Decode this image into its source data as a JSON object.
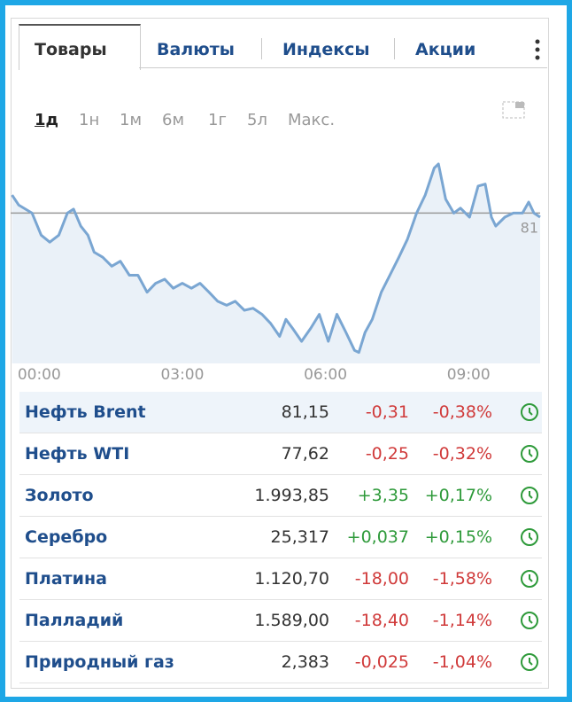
{
  "tabs": [
    "Товары",
    "Валюты",
    "Индексы",
    "Акции"
  ],
  "periods": [
    "1д",
    "1н",
    "1м",
    "6м",
    "1г",
    "5л",
    "Макс."
  ],
  "chart_data": {
    "type": "line",
    "color": "#7aa6d2",
    "fill": "#eaf1f8",
    "x": [
      -0.57,
      -0.43,
      -0.15,
      0.04,
      0.22,
      0.41,
      0.59,
      0.72,
      0.87,
      1.02,
      1.15,
      1.33,
      1.52,
      1.7,
      1.89,
      2.07,
      2.26,
      2.44,
      2.63,
      2.81,
      3.0,
      3.19,
      3.37,
      3.56,
      3.74,
      3.93,
      4.11,
      4.3,
      4.48,
      4.67,
      4.85,
      5.04,
      5.17,
      5.31,
      5.5,
      5.69,
      5.87,
      6.06,
      6.24,
      6.43,
      6.61,
      6.7,
      6.83,
      6.98,
      7.17,
      7.35,
      7.54,
      7.72,
      7.91,
      8.09,
      8.28,
      8.37,
      8.52,
      8.69,
      8.83,
      9.02,
      9.2,
      9.35,
      9.48,
      9.57,
      9.76,
      9.94,
      10.13,
      10.26,
      10.37,
      10.5
    ],
    "series": [
      {
        "values": [
          81.18,
          81.08,
          81.0,
          80.78,
          80.71,
          80.78,
          81.0,
          81.04,
          80.87,
          80.78,
          80.61,
          80.56,
          80.47,
          80.52,
          80.38,
          80.38,
          80.21,
          80.3,
          80.34,
          80.25,
          80.3,
          80.25,
          80.3,
          80.21,
          80.12,
          80.08,
          80.12,
          80.03,
          80.05,
          79.99,
          79.9,
          79.77,
          79.94,
          79.85,
          79.72,
          79.85,
          79.99,
          79.72,
          79.99,
          79.81,
          79.63,
          79.61,
          79.81,
          79.94,
          80.21,
          80.38,
          80.56,
          80.74,
          81.0,
          81.18,
          81.45,
          81.49,
          81.14,
          81.0,
          81.05,
          80.96,
          81.27,
          81.29,
          80.96,
          80.87,
          80.96,
          81.0,
          81.0,
          81.11,
          81.0,
          80.96
        ]
      }
    ],
    "xlim": [
      -0.6,
      10.5
    ],
    "ylim": [
      79.5,
      81.8
    ],
    "xticks": [
      {
        "value": 0,
        "label": "00:00"
      },
      {
        "value": 3,
        "label": "03:00"
      },
      {
        "value": 6,
        "label": "06:00"
      },
      {
        "value": 9,
        "label": "09:00"
      }
    ],
    "yticks": [
      81
    ]
  },
  "table": {
    "rows": [
      {
        "name": "Нефть Brent",
        "price": "81,15",
        "change": "-0,31",
        "percent": "-0,38%",
        "color": "#d03a3a"
      },
      {
        "name": "Нефть WTI",
        "price": "77,62",
        "change": "-0,25",
        "percent": "-0,32%",
        "color": "#d03a3a"
      },
      {
        "name": "Золото",
        "price": "1.993,85",
        "change": "+3,35",
        "percent": "+0,17%",
        "color": "#2e9a3a"
      },
      {
        "name": "Серебро",
        "price": "25,317",
        "change": "+0,037",
        "percent": "+0,15%",
        "color": "#2e9a3a"
      },
      {
        "name": "Платина",
        "price": "1.120,70",
        "change": "-18,00",
        "percent": "-1,58%",
        "color": "#d03a3a"
      },
      {
        "name": "Палладий",
        "price": "1.589,00",
        "change": "-18,40",
        "percent": "-1,14%",
        "color": "#d03a3a"
      },
      {
        "name": "Природный газ",
        "price": "2,383",
        "change": "-0,025",
        "percent": "-1,04%",
        "color": "#d03a3a"
      }
    ]
  }
}
